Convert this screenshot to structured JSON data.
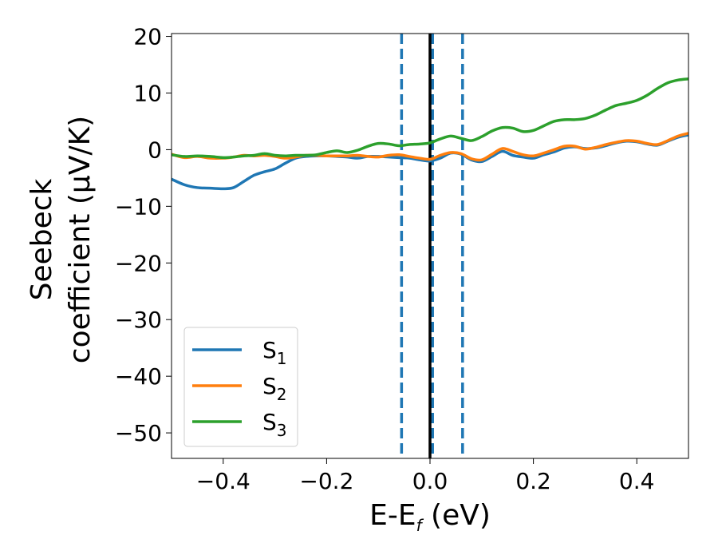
{
  "chart_data": {
    "type": "line",
    "title": "",
    "xlabel_main": "E-E",
    "xlabel_sub": "f",
    "xlabel_unit": " (eV)",
    "ylabel_line1": "Seebeck",
    "ylabel_line2": "coefficient  (μV/K)",
    "xlim": [
      -0.5,
      0.5
    ],
    "ylim": [
      -54.5,
      20.5
    ],
    "xticks": [
      -0.4,
      -0.2,
      0.0,
      0.2,
      0.4
    ],
    "xtick_labels": [
      "−0.4",
      "−0.2",
      "0.0",
      "0.2",
      "0.4"
    ],
    "yticks": [
      20,
      10,
      0,
      -10,
      -20,
      -30,
      -40,
      -50
    ],
    "ytick_labels": [
      "20",
      "10",
      "0",
      "−10",
      "−20",
      "−30",
      "−40",
      "−50"
    ],
    "grid": false,
    "legend_position": "bottom-left",
    "vlines": [
      {
        "x": -0.055,
        "style": "dashed",
        "color": "#1f77b4"
      },
      {
        "x": 0.005,
        "style": "dashed",
        "color": "#1f77b4"
      },
      {
        "x": 0.063,
        "style": "dashed",
        "color": "#1f77b4"
      },
      {
        "x": 0.0,
        "style": "solid",
        "color": "#000000"
      }
    ],
    "x": [
      -0.5,
      -0.475,
      -0.45,
      -0.425,
      -0.4,
      -0.38,
      -0.36,
      -0.34,
      -0.32,
      -0.3,
      -0.28,
      -0.26,
      -0.24,
      -0.22,
      -0.2,
      -0.18,
      -0.16,
      -0.14,
      -0.12,
      -0.1,
      -0.08,
      -0.06,
      -0.04,
      -0.02,
      0.0,
      0.02,
      0.04,
      0.06,
      0.08,
      0.1,
      0.12,
      0.14,
      0.16,
      0.18,
      0.2,
      0.22,
      0.24,
      0.26,
      0.28,
      0.3,
      0.32,
      0.34,
      0.36,
      0.38,
      0.4,
      0.42,
      0.44,
      0.46,
      0.48,
      0.5
    ],
    "series": [
      {
        "label_main": "S",
        "label_sub": "1",
        "color": "#1f77b4",
        "values": [
          -5.2,
          -6.2,
          -6.7,
          -6.8,
          -6.9,
          -6.7,
          -5.6,
          -4.5,
          -3.9,
          -3.4,
          -2.4,
          -1.5,
          -1.2,
          -1.1,
          -1.1,
          -1.2,
          -1.3,
          -1.5,
          -1.2,
          -1.2,
          -1.3,
          -1.4,
          -1.5,
          -1.8,
          -2.0,
          -1.5,
          -0.6,
          -0.8,
          -1.8,
          -2.1,
          -1.2,
          -0.3,
          -1.0,
          -1.3,
          -1.5,
          -0.9,
          -0.4,
          0.3,
          0.5,
          0.2,
          0.3,
          0.7,
          1.2,
          1.5,
          1.4,
          1.0,
          0.8,
          1.5,
          2.2,
          2.6
        ]
      },
      {
        "label_main": "S",
        "label_sub": "2",
        "color": "#ff7f0e",
        "values": [
          -0.8,
          -1.4,
          -1.2,
          -1.5,
          -1.5,
          -1.3,
          -1.0,
          -1.1,
          -1.0,
          -1.2,
          -1.5,
          -1.3,
          -1.0,
          -1.0,
          -1.1,
          -1.1,
          -1.1,
          -1.0,
          -1.2,
          -1.3,
          -1.0,
          -0.9,
          -1.2,
          -1.5,
          -1.7,
          -1.0,
          -0.5,
          -0.7,
          -1.6,
          -1.8,
          -0.8,
          0.2,
          -0.3,
          -0.9,
          -1.1,
          -0.6,
          0.0,
          0.6,
          0.6,
          0.1,
          0.4,
          0.9,
          1.3,
          1.6,
          1.5,
          1.1,
          0.9,
          1.6,
          2.4,
          2.9
        ]
      },
      {
        "label_main": "S",
        "label_sub": "3",
        "color": "#2ca02c",
        "values": [
          -0.9,
          -1.2,
          -1.1,
          -1.2,
          -1.4,
          -1.3,
          -1.1,
          -1.0,
          -0.7,
          -1.0,
          -1.1,
          -1.0,
          -1.0,
          -0.9,
          -0.5,
          -0.2,
          -0.5,
          -0.1,
          0.6,
          1.1,
          1.0,
          0.7,
          0.9,
          1.0,
          1.2,
          1.9,
          2.4,
          2.0,
          1.6,
          2.3,
          3.3,
          3.9,
          3.8,
          3.2,
          3.4,
          4.2,
          5.0,
          5.3,
          5.3,
          5.5,
          6.1,
          7.0,
          7.8,
          8.2,
          8.7,
          9.6,
          10.8,
          11.8,
          12.3,
          12.5
        ]
      }
    ]
  }
}
